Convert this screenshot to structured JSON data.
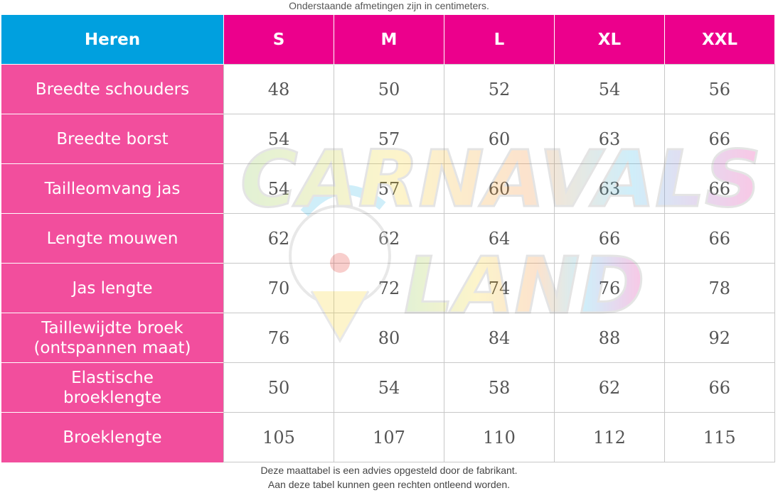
{
  "note_top": "Onderstaande afmetingen zijn in centimeters.",
  "colors": {
    "header_corner": "#00a0df",
    "header_sizes": "#ec008c",
    "row_labels": "#f24e9d",
    "grid": "#c8c8c8"
  },
  "watermark": {
    "line1": "CARNAVALS",
    "line2": "LAND",
    "icon": "clown-logo-icon"
  },
  "table": {
    "corner_label": "Heren",
    "sizes": [
      "S",
      "M",
      "L",
      "XL",
      "XXL"
    ],
    "rows": [
      {
        "label": "Breedte schouders",
        "values": [
          "48",
          "50",
          "52",
          "54",
          "56"
        ]
      },
      {
        "label": "Breedte borst",
        "values": [
          "54",
          "57",
          "60",
          "63",
          "66"
        ]
      },
      {
        "label": "Tailleomvang jas",
        "values": [
          "54",
          "57",
          "60",
          "63",
          "66"
        ]
      },
      {
        "label": "Lengte mouwen",
        "values": [
          "62",
          "62",
          "64",
          "66",
          "66"
        ]
      },
      {
        "label": "Jas lengte",
        "values": [
          "70",
          "72",
          "74",
          "76",
          "78"
        ]
      },
      {
        "label": "Taillewijdte broek (ontspannen maat)",
        "values": [
          "76",
          "80",
          "84",
          "88",
          "92"
        ]
      },
      {
        "label": "Elastische broeklengte",
        "values": [
          "50",
          "54",
          "58",
          "62",
          "66"
        ]
      },
      {
        "label": "Broeklengte",
        "values": [
          "105",
          "107",
          "110",
          "112",
          "115"
        ]
      }
    ]
  },
  "footer": {
    "line1": "Deze maattabel is een advies opgesteld door de fabrikant.",
    "line2": "Aan deze tabel kunnen geen rechten ontleend worden."
  }
}
